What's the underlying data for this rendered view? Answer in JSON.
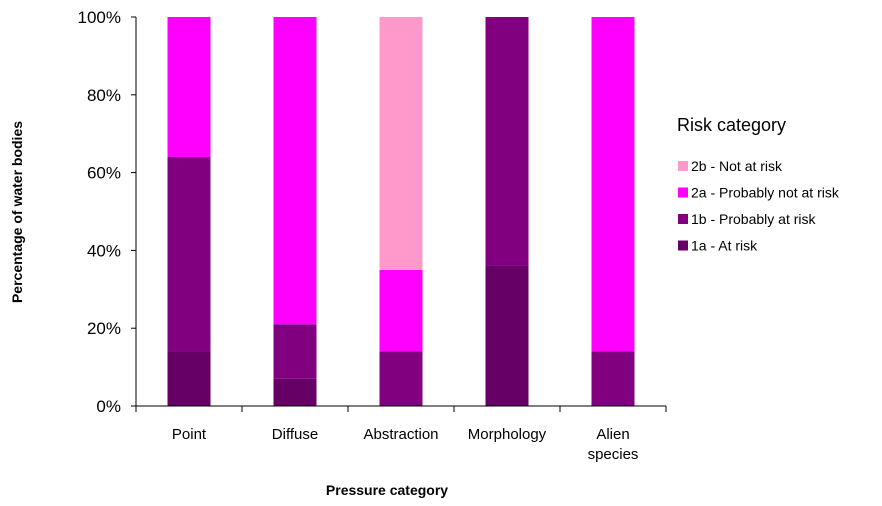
{
  "chart_data": {
    "type": "bar",
    "stacked": true,
    "categories": [
      [
        "Point"
      ],
      [
        "Diffuse"
      ],
      [
        "Abstraction"
      ],
      [
        "Morphology"
      ],
      [
        "Alien",
        "species"
      ]
    ],
    "series": [
      {
        "name": "1a - At risk",
        "color": "#660066",
        "values": [
          14,
          7,
          0,
          36,
          0
        ]
      },
      {
        "name": "1b - Probably at risk",
        "color": "#800080",
        "values": [
          50,
          14,
          14,
          64,
          14
        ]
      },
      {
        "name": "2a - Probably not at risk",
        "color": "#FF00FF",
        "values": [
          36,
          79,
          21,
          0,
          86
        ]
      },
      {
        "name": "2b - Not at risk",
        "color": "#FF99CC",
        "values": [
          0,
          0,
          65,
          0,
          0
        ]
      }
    ],
    "xlabel": "Pressure category",
    "ylabel": "Percentage of water bodies",
    "ylim": [
      0,
      100
    ],
    "yticks": [
      "0%",
      "20%",
      "40%",
      "60%",
      "80%",
      "100%"
    ],
    "grid": false,
    "legend": {
      "title": "Risk category",
      "position": "right",
      "order": [
        "2b - Not at risk",
        "2a - Probably not at risk",
        "1b - Probably at risk",
        "1a - At risk"
      ]
    }
  }
}
